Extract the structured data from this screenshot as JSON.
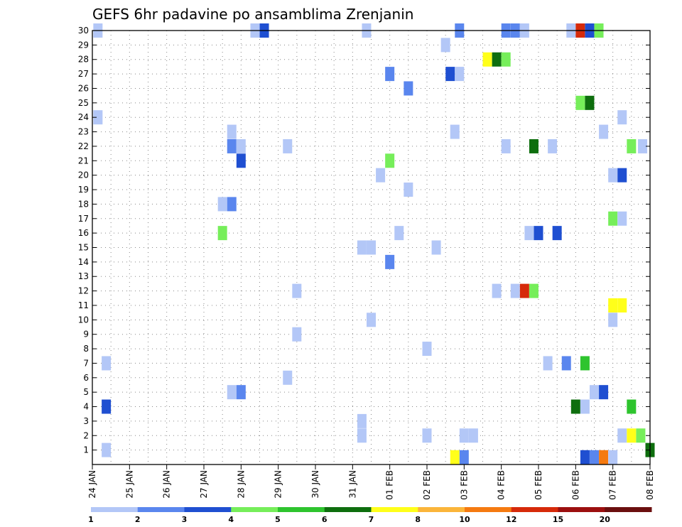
{
  "chart_data": {
    "type": "heatmap",
    "title": "GEFS 6hr padavine po ansamblima Zrenjanin",
    "xlabel": "",
    "ylabel": "",
    "x_tick_labels": [
      "24 JAN",
      "25 JAN",
      "26 JAN",
      "27 JAN",
      "28 JAN",
      "29 JAN",
      "30 JAN",
      "31 JAN",
      "01 FEB",
      "02 FEB",
      "03 FEB",
      "04 FEB",
      "05 FEB",
      "06 FEB",
      "07 FEB",
      "08 FEB"
    ],
    "x_unit": "6-hour step (4 per day), step 0 = 24 JAN 00",
    "x_range": [
      0,
      60
    ],
    "y_tick_labels": [
      "1",
      "2",
      "3",
      "4",
      "5",
      "6",
      "7",
      "8",
      "9",
      "10",
      "11",
      "12",
      "13",
      "14",
      "15",
      "16",
      "17",
      "18",
      "19",
      "20",
      "21",
      "22",
      "23",
      "24",
      "25",
      "26",
      "27",
      "28",
      "29",
      "30"
    ],
    "y_range": [
      0,
      30
    ],
    "grid": true,
    "colorbar": {
      "colors": [
        "#b3c7f7",
        "#5a86ee",
        "#1f4fd1",
        "#76ee5a",
        "#2ec42e",
        "#0e6e0e",
        "#ffff1a",
        "#fbb53a",
        "#f57a10",
        "#d62a0a",
        "#9c0f0f",
        "#6b0f0f"
      ],
      "labels": [
        "1",
        "2",
        "3",
        "4",
        "5",
        "6",
        "7",
        "8",
        "10",
        "12",
        "15",
        "20"
      ]
    },
    "cells": [
      {
        "m": 30,
        "t": 0.6,
        "c": 0
      },
      {
        "m": 30,
        "t": 17.5,
        "c": 0
      },
      {
        "m": 30,
        "t": 18.5,
        "c": 2
      },
      {
        "m": 30,
        "t": 29.5,
        "c": 0
      },
      {
        "m": 30,
        "t": 39.5,
        "c": 1
      },
      {
        "m": 30,
        "t": 44.5,
        "c": 1
      },
      {
        "m": 30,
        "t": 45.5,
        "c": 1
      },
      {
        "m": 30,
        "t": 46.5,
        "c": 0
      },
      {
        "m": 30,
        "t": 51.5,
        "c": 0
      },
      {
        "m": 30,
        "t": 52.5,
        "c": 9
      },
      {
        "m": 30,
        "t": 53.5,
        "c": 2
      },
      {
        "m": 30,
        "t": 54.5,
        "c": 3
      },
      {
        "m": 29,
        "t": 38,
        "c": 0
      },
      {
        "m": 28,
        "t": 42.5,
        "c": 6
      },
      {
        "m": 28,
        "t": 43.5,
        "c": 5
      },
      {
        "m": 28,
        "t": 44.5,
        "c": 3
      },
      {
        "m": 27,
        "t": 32,
        "c": 1
      },
      {
        "m": 27,
        "t": 38.5,
        "c": 2
      },
      {
        "m": 27,
        "t": 39.5,
        "c": 0
      },
      {
        "m": 26,
        "t": 34,
        "c": 1
      },
      {
        "m": 25,
        "t": 52.5,
        "c": 3
      },
      {
        "m": 25,
        "t": 53.5,
        "c": 5
      },
      {
        "m": 24,
        "t": 0.6,
        "c": 0
      },
      {
        "m": 24,
        "t": 57,
        "c": 0
      },
      {
        "m": 23,
        "t": 15,
        "c": 0
      },
      {
        "m": 23,
        "t": 39,
        "c": 0
      },
      {
        "m": 23,
        "t": 55,
        "c": 0
      },
      {
        "m": 22,
        "t": 15,
        "c": 1
      },
      {
        "m": 22,
        "t": 16,
        "c": 0
      },
      {
        "m": 22,
        "t": 21,
        "c": 0
      },
      {
        "m": 22,
        "t": 44.5,
        "c": 0
      },
      {
        "m": 22,
        "t": 47.5,
        "c": 5
      },
      {
        "m": 22,
        "t": 49.5,
        "c": 0
      },
      {
        "m": 22,
        "t": 58,
        "c": 3
      },
      {
        "m": 22,
        "t": 59.2,
        "c": 0
      },
      {
        "m": 21,
        "t": 16,
        "c": 2
      },
      {
        "m": 21,
        "t": 32,
        "c": 3
      },
      {
        "m": 20,
        "t": 31,
        "c": 0
      },
      {
        "m": 20,
        "t": 56,
        "c": 0
      },
      {
        "m": 20,
        "t": 57,
        "c": 2
      },
      {
        "m": 19,
        "t": 34,
        "c": 0
      },
      {
        "m": 18,
        "t": 14,
        "c": 0
      },
      {
        "m": 18,
        "t": 15,
        "c": 1
      },
      {
        "m": 17,
        "t": 56,
        "c": 3
      },
      {
        "m": 17,
        "t": 57,
        "c": 0
      },
      {
        "m": 16,
        "t": 14,
        "c": 3
      },
      {
        "m": 16,
        "t": 33,
        "c": 0
      },
      {
        "m": 16,
        "t": 47,
        "c": 0
      },
      {
        "m": 16,
        "t": 48,
        "c": 2
      },
      {
        "m": 16,
        "t": 50,
        "c": 2
      },
      {
        "m": 15,
        "t": 29,
        "c": 0
      },
      {
        "m": 15,
        "t": 30,
        "c": 0
      },
      {
        "m": 15,
        "t": 37,
        "c": 0
      },
      {
        "m": 14,
        "t": 32,
        "c": 1
      },
      {
        "m": 12,
        "t": 22,
        "c": 0
      },
      {
        "m": 12,
        "t": 43.5,
        "c": 0
      },
      {
        "m": 12,
        "t": 45.5,
        "c": 0
      },
      {
        "m": 12,
        "t": 46.5,
        "c": 9
      },
      {
        "m": 12,
        "t": 47.5,
        "c": 3
      },
      {
        "m": 11,
        "t": 56,
        "c": 6
      },
      {
        "m": 11,
        "t": 57,
        "c": 6
      },
      {
        "m": 10,
        "t": 30,
        "c": 0
      },
      {
        "m": 10,
        "t": 56,
        "c": 0
      },
      {
        "m": 9,
        "t": 22,
        "c": 0
      },
      {
        "m": 8,
        "t": 36,
        "c": 0
      },
      {
        "m": 7,
        "t": 1.5,
        "c": 0
      },
      {
        "m": 7,
        "t": 49,
        "c": 0
      },
      {
        "m": 7,
        "t": 51,
        "c": 1
      },
      {
        "m": 7,
        "t": 53,
        "c": 4
      },
      {
        "m": 6,
        "t": 21,
        "c": 0
      },
      {
        "m": 5,
        "t": 15,
        "c": 0
      },
      {
        "m": 5,
        "t": 16,
        "c": 1
      },
      {
        "m": 5,
        "t": 54,
        "c": 0
      },
      {
        "m": 5,
        "t": 55,
        "c": 2
      },
      {
        "m": 4,
        "t": 1.5,
        "c": 2
      },
      {
        "m": 4,
        "t": 52,
        "c": 5
      },
      {
        "m": 4,
        "t": 53,
        "c": 0
      },
      {
        "m": 4,
        "t": 58,
        "c": 4
      },
      {
        "m": 3,
        "t": 29,
        "c": 0
      },
      {
        "m": 2,
        "t": 29,
        "c": 0
      },
      {
        "m": 2,
        "t": 36,
        "c": 0
      },
      {
        "m": 2,
        "t": 40,
        "c": 0
      },
      {
        "m": 2,
        "t": 41,
        "c": 0
      },
      {
        "m": 2,
        "t": 57,
        "c": 0
      },
      {
        "m": 2,
        "t": 58,
        "c": 6
      },
      {
        "m": 2,
        "t": 59,
        "c": 3
      },
      {
        "m": 1,
        "t": 1.5,
        "c": 0
      },
      {
        "m": 1,
        "t": 60,
        "c": 5
      },
      {
        "m": 0.5,
        "t": 39,
        "c": 6
      },
      {
        "m": 0.5,
        "t": 40,
        "c": 1
      },
      {
        "m": 0.5,
        "t": 53,
        "c": 2
      },
      {
        "m": 0.5,
        "t": 54,
        "c": 1
      },
      {
        "m": 0.5,
        "t": 55,
        "c": 8
      },
      {
        "m": 0.5,
        "t": 56,
        "c": 0
      }
    ]
  }
}
